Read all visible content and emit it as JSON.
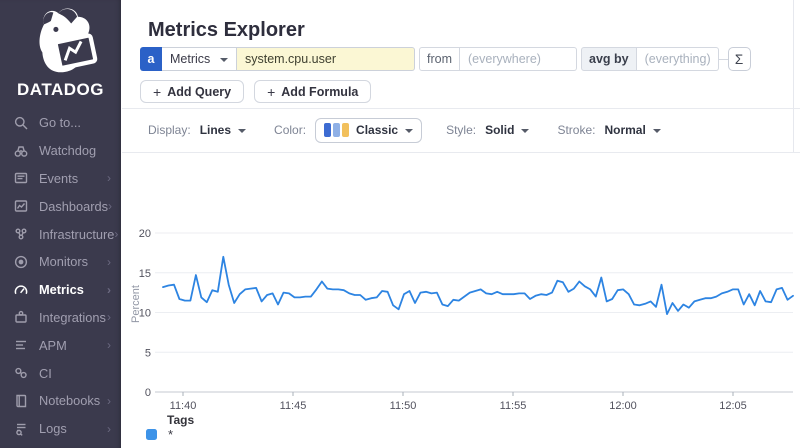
{
  "sidebar": {
    "brand": "DATADOG",
    "items": [
      {
        "label": "Go to...",
        "icon": "search-icon"
      },
      {
        "label": "Watchdog",
        "icon": "binoculars-icon"
      },
      {
        "label": "Events",
        "icon": "events-icon"
      },
      {
        "label": "Dashboards",
        "icon": "dashboards-icon"
      },
      {
        "label": "Infrastructure",
        "icon": "infrastructure-icon"
      },
      {
        "label": "Monitors",
        "icon": "monitors-icon"
      },
      {
        "label": "Metrics",
        "icon": "metrics-icon",
        "active": true
      },
      {
        "label": "Integrations",
        "icon": "integrations-icon"
      },
      {
        "label": "APM",
        "icon": "apm-icon"
      },
      {
        "label": "CI",
        "icon": "ci-icon"
      },
      {
        "label": "Notebooks",
        "icon": "notebooks-icon"
      },
      {
        "label": "Logs",
        "icon": "logs-icon"
      }
    ]
  },
  "header": {
    "title": "Metrics Explorer"
  },
  "query": {
    "letter": "a",
    "source_label": "Metrics",
    "metric_value": "system.cpu.user",
    "from_label": "from",
    "from_placeholder": "(everywhere)",
    "avg_by_label": "avg by",
    "avg_by_placeholder": "(everything)",
    "sigma_label": "Σ",
    "plus_glyph": "+",
    "add_query_label": "Add Query",
    "add_formula_label": "Add Formula"
  },
  "display_options": {
    "display_label": "Display:",
    "display_value": "Lines",
    "color_label": "Color:",
    "color_value": "Classic",
    "style_label": "Style:",
    "style_value": "Solid",
    "stroke_label": "Stroke:",
    "stroke_value": "Normal",
    "swatches": [
      "#3c6bd2",
      "#8fb0e6",
      "#f2c05c"
    ]
  },
  "legend": {
    "title": "Tags",
    "entries": [
      {
        "label": "*",
        "color": "#3d93e8"
      }
    ]
  },
  "chart_data": {
    "type": "line",
    "title": "",
    "xlabel": "",
    "ylabel": "Percent",
    "ylim": [
      0,
      20
    ],
    "yticks": [
      0,
      5,
      10,
      15,
      20
    ],
    "xticks": [
      "11:40",
      "11:45",
      "11:50",
      "11:55",
      "12:00",
      "12:05"
    ],
    "grid": true,
    "legend_position": "bottom",
    "series": [
      {
        "name": "*",
        "color": "#2d84e2",
        "values": [
          13.2,
          13.4,
          13.5,
          11.7,
          11.5,
          11.5,
          14.7,
          11.9,
          11.3,
          12.8,
          12.6,
          17.0,
          13.5,
          11.2,
          12.3,
          12.9,
          13.0,
          13.1,
          11.4,
          12.2,
          12.4,
          11.0,
          12.5,
          12.4,
          11.9,
          11.9,
          12.0,
          12.0,
          12.9,
          13.9,
          13.0,
          12.9,
          12.9,
          12.8,
          12.4,
          12.2,
          12.2,
          11.6,
          11.8,
          11.9,
          12.7,
          12.6,
          10.9,
          10.4,
          12.3,
          12.7,
          11.2,
          12.5,
          12.6,
          12.4,
          12.5,
          11.0,
          10.8,
          11.6,
          11.5,
          12.0,
          12.5,
          12.7,
          12.9,
          12.4,
          12.3,
          12.6,
          12.3,
          12.3,
          12.3,
          12.4,
          12.4,
          11.7,
          12.1,
          12.3,
          12.2,
          12.5,
          14.0,
          13.8,
          12.6,
          13.0,
          13.9,
          13.3,
          12.9,
          12.0,
          14.4,
          11.4,
          11.7,
          12.8,
          12.9,
          12.3,
          11.0,
          10.9,
          11.1,
          11.4,
          10.7,
          13.5,
          9.8,
          11.2,
          10.2,
          11.0,
          10.6,
          11.4,
          11.6,
          11.8,
          11.8,
          12.0,
          12.4,
          12.6,
          12.9,
          12.9,
          11.0,
          12.3,
          10.9,
          12.7,
          11.4,
          11.3,
          12.9,
          13.1,
          11.6,
          12.1
        ]
      }
    ]
  }
}
